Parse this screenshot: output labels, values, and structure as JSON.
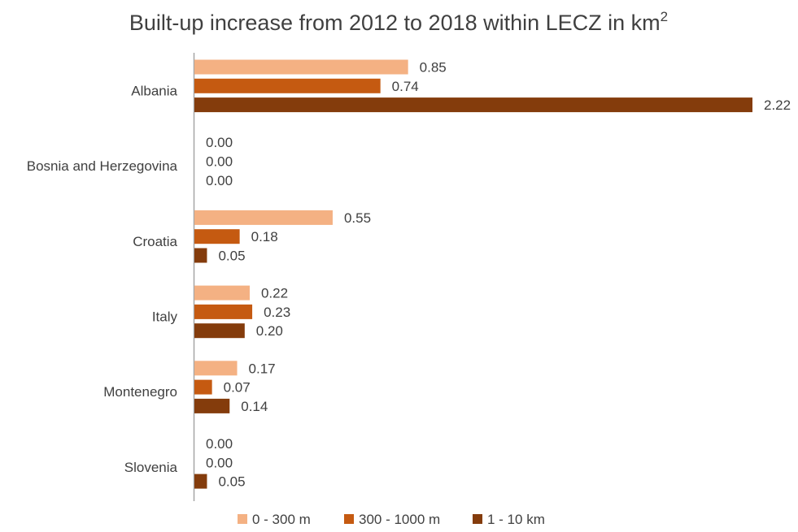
{
  "chart_data": {
    "type": "bar",
    "orientation": "horizontal",
    "title": "Built-up increase from 2012 to 2018 within LECZ in km",
    "title_superscript": "2",
    "categories": [
      "Albania",
      "Bosnia and Herzegovina",
      "Croatia",
      "Italy",
      "Montenegro",
      "Slovenia"
    ],
    "series": [
      {
        "name": "0 - 300 m",
        "color": "#F4B183",
        "values": [
          0.85,
          0.0,
          0.55,
          0.22,
          0.17,
          0.0
        ]
      },
      {
        "name": "300 - 1000 m",
        "color": "#C55A11",
        "values": [
          0.74,
          0.0,
          0.18,
          0.23,
          0.07,
          0.0
        ]
      },
      {
        "name": "1 - 10 km",
        "color": "#843C0C",
        "values": [
          2.22,
          0.0,
          0.05,
          0.2,
          0.14,
          0.05
        ]
      }
    ],
    "xlim": [
      0,
      2.22
    ],
    "value_decimals": 2,
    "grid": false,
    "legend_position": "bottom"
  }
}
